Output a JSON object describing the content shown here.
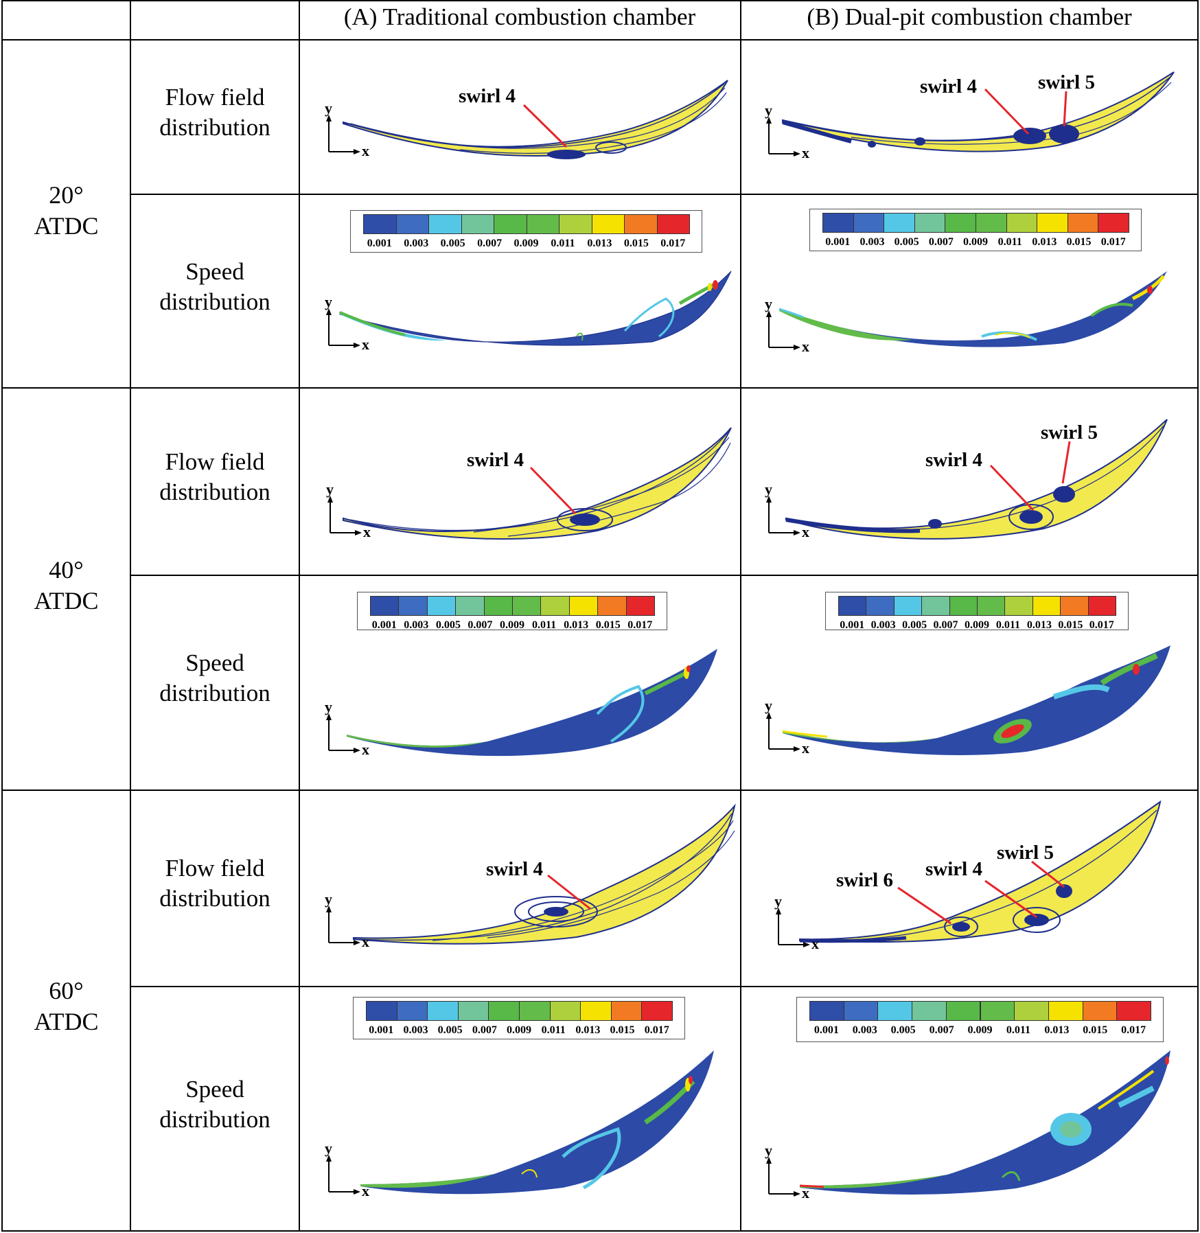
{
  "header": {
    "col_a": "(A) Traditional combustion chamber",
    "col_b": "(B) Dual-pit combustion chamber"
  },
  "groups": [
    {
      "angle": "20°",
      "unit": "ATDC"
    },
    {
      "angle": "40°",
      "unit": "ATDC"
    },
    {
      "angle": "60°",
      "unit": "ATDC"
    }
  ],
  "rows": {
    "flow": {
      "line1": "Flow field",
      "line2": "distribution"
    },
    "speed": {
      "line1": "Speed",
      "line2": "distribution"
    }
  },
  "axes": {
    "x": "x",
    "y": "y"
  },
  "colorbar": {
    "colors": [
      "#2f4ea8",
      "#3e6cc0",
      "#55c7e6",
      "#72c59a",
      "#58b848",
      "#63bb4a",
      "#add03c",
      "#f5e200",
      "#f27a22",
      "#e5262b"
    ],
    "ticks": [
      "0.001",
      "0.003",
      "0.005",
      "0.007",
      "0.009",
      "0.011",
      "0.013",
      "0.015",
      "0.017"
    ]
  },
  "swirl_labels": {
    "a20": [
      "swirl 4"
    ],
    "b20": [
      "swirl 4",
      "swirl 5"
    ],
    "a40": [
      "swirl 4"
    ],
    "b40": [
      "swirl 5",
      "swirl 4"
    ],
    "a60": [
      "swirl 4"
    ],
    "b60": [
      "swirl 5",
      "swirl 6",
      "swirl 4"
    ]
  },
  "colors": {
    "grid": "#000000",
    "flow_fill": "#f2e94e",
    "flow_lines": "#1e2e8c",
    "speed_base": "#2c4aa6",
    "arrow": "#e5262b"
  }
}
